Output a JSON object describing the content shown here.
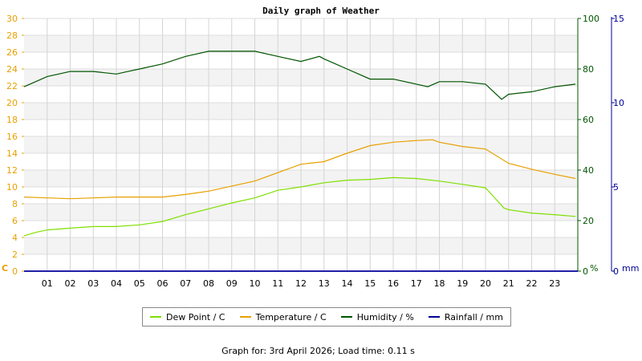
{
  "chart_data": {
    "type": "line",
    "title": "Daily graph of Weather",
    "x_ticks": [
      "01",
      "02",
      "03",
      "04",
      "05",
      "06",
      "07",
      "08",
      "09",
      "10",
      "11",
      "12",
      "13",
      "14",
      "15",
      "16",
      "17",
      "18",
      "19",
      "20",
      "21",
      "22",
      "23"
    ],
    "x_range": [
      0,
      24
    ],
    "axes": {
      "temperature": {
        "unit_label": "C",
        "ylim": [
          0,
          30
        ],
        "ticks": [
          0,
          2,
          4,
          6,
          8,
          10,
          12,
          14,
          16,
          18,
          20,
          22,
          24,
          26,
          28,
          30
        ],
        "color": "#e8a000"
      },
      "humidity": {
        "unit_label": "%",
        "ylim": [
          0,
          100
        ],
        "ticks": [
          0,
          20,
          40,
          60,
          80,
          100
        ],
        "color": "#005500"
      },
      "rainfall": {
        "unit_label": "mm",
        "ylim": [
          0,
          15
        ],
        "ticks": [
          0,
          5,
          10,
          15
        ],
        "color": "#000099"
      }
    },
    "series": [
      {
        "name": "Dew Point / C",
        "axis": "temperature",
        "color": "#7ee000",
        "x": [
          0,
          0.5,
          1,
          2,
          3,
          4,
          5,
          6,
          7,
          8,
          9,
          10,
          11,
          12,
          13,
          14,
          15,
          16,
          17,
          18,
          19,
          20,
          20.3,
          20.8,
          21,
          22,
          23,
          23.9
        ],
        "y": [
          4.2,
          4.6,
          4.9,
          5.1,
          5.3,
          5.3,
          5.5,
          5.9,
          6.7,
          7.4,
          8.1,
          8.7,
          9.6,
          10.0,
          10.5,
          10.8,
          10.9,
          11.1,
          11.0,
          10.7,
          10.3,
          9.9,
          9.0,
          7.5,
          7.3,
          6.9,
          6.7,
          6.5
        ]
      },
      {
        "name": "Temperature / C",
        "axis": "temperature",
        "color": "#e8a000",
        "x": [
          0,
          1,
          2,
          3,
          4,
          5,
          6,
          7,
          8,
          9,
          10,
          11,
          12,
          13,
          14,
          15,
          16,
          17,
          17.7,
          18,
          19,
          20,
          21,
          22,
          23,
          23.9
        ],
        "y": [
          8.8,
          8.7,
          8.6,
          8.7,
          8.8,
          8.8,
          8.8,
          9.1,
          9.5,
          10.1,
          10.7,
          11.7,
          12.7,
          13.0,
          14.0,
          14.9,
          15.3,
          15.5,
          15.6,
          15.3,
          14.8,
          14.5,
          12.8,
          12.1,
          11.5,
          11.0
        ]
      },
      {
        "name": "Humidity / %",
        "axis": "humidity",
        "color": "#005500",
        "x": [
          0,
          0.5,
          1,
          2,
          3,
          4,
          4.5,
          5,
          6,
          7,
          8,
          9,
          10,
          11,
          12,
          12.8,
          13,
          13.5,
          14,
          15,
          16,
          17,
          17.5,
          18,
          19,
          20,
          20.7,
          21,
          22,
          23,
          23.9
        ],
        "y": [
          73,
          75,
          77,
          79,
          79,
          78,
          79,
          80,
          82,
          85,
          87,
          87,
          87,
          85,
          83,
          85,
          84,
          82,
          80,
          76,
          76,
          74,
          73,
          75,
          75,
          74,
          68,
          70,
          71,
          73,
          74
        ]
      },
      {
        "name": "Rainfall / mm",
        "axis": "rainfall",
        "color": "#000099",
        "x": [
          0,
          24
        ],
        "y": [
          0,
          0
        ]
      }
    ],
    "grid": true,
    "legend_position": "bottom"
  },
  "footer": "Graph for: 3rd April 2026; Load time: 0.11 s"
}
